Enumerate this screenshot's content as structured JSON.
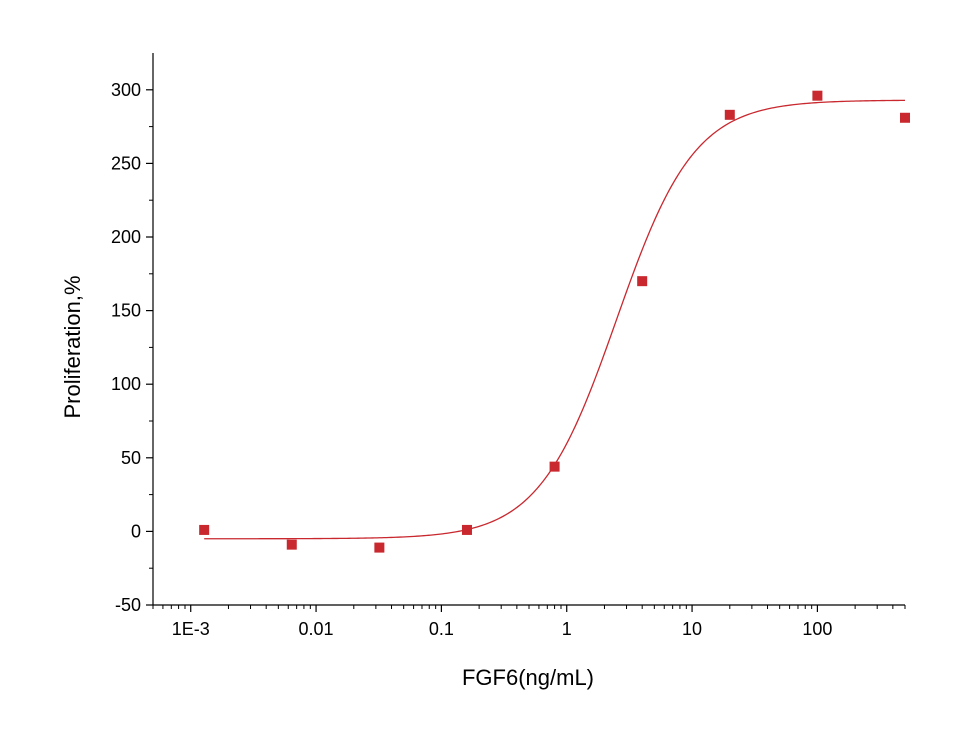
{
  "chart_data": {
    "type": "scatter",
    "xlabel": "FGF6(ng/mL)",
    "ylabel": "Proliferation,%",
    "xscale": "log",
    "xlim": [
      0.0005,
      500
    ],
    "ylim": [
      -50,
      325
    ],
    "x_ticks": [
      {
        "value": 0.001,
        "label": "1E-3"
      },
      {
        "value": 0.01,
        "label": "0.01"
      },
      {
        "value": 0.1,
        "label": "0.1"
      },
      {
        "value": 1,
        "label": "1"
      },
      {
        "value": 10,
        "label": "10"
      },
      {
        "value": 100,
        "label": "100"
      }
    ],
    "y_ticks": [
      -50,
      0,
      50,
      100,
      150,
      200,
      250,
      300
    ],
    "grid": false,
    "series": [
      {
        "points": [
          {
            "x": 0.00128,
            "y": 1
          },
          {
            "x": 0.0064,
            "y": -9
          },
          {
            "x": 0.032,
            "y": -11
          },
          {
            "x": 0.16,
            "y": 1
          },
          {
            "x": 0.8,
            "y": 44
          },
          {
            "x": 4,
            "y": 170
          },
          {
            "x": 20,
            "y": 283
          },
          {
            "x": 100,
            "y": 296
          },
          {
            "x": 500,
            "y": 281
          }
        ],
        "marker": "square",
        "color": "#c8282e"
      }
    ],
    "fit": {
      "model": "4PL",
      "bottom": -5,
      "top": 293,
      "ec50": 2.5,
      "hill": 1.4,
      "x_from": 0.00128,
      "x_to": 500,
      "color": "#c8282e"
    }
  }
}
